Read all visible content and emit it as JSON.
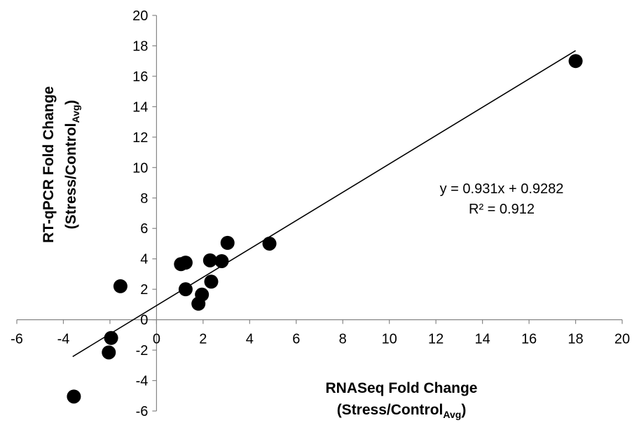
{
  "chart_data": {
    "type": "scatter",
    "title": "",
    "xlabel_line1": "RNASeq Fold Change",
    "xlabel_line2_main": "(Stress/Control",
    "xlabel_line2_sub": "Avg",
    "xlabel_line2_end": ")",
    "ylabel_line1": "RT-qPCR Fold Change",
    "ylabel_line2_main": "(Stress/Control",
    "ylabel_line2_sub": "Avg",
    "ylabel_line2_end": ")",
    "xlim": [
      -6,
      20
    ],
    "ylim": [
      -6,
      20
    ],
    "x_ticks": [
      -6,
      -4,
      -2,
      0,
      2,
      4,
      6,
      8,
      10,
      12,
      14,
      16,
      18,
      20
    ],
    "y_ticks": [
      -6,
      -4,
      -2,
      0,
      2,
      4,
      6,
      8,
      10,
      12,
      14,
      16,
      18,
      20
    ],
    "grid": false,
    "marker_color": "#000000",
    "points": [
      {
        "x": 18.0,
        "y": 17.0
      },
      {
        "x": 4.85,
        "y": 5.0
      },
      {
        "x": 3.05,
        "y": 5.05
      },
      {
        "x": 2.8,
        "y": 3.85
      },
      {
        "x": 2.3,
        "y": 3.9
      },
      {
        "x": 2.35,
        "y": 2.5
      },
      {
        "x": 1.95,
        "y": 1.65
      },
      {
        "x": 1.8,
        "y": 1.05
      },
      {
        "x": 1.25,
        "y": 2.0
      },
      {
        "x": 1.25,
        "y": 3.75
      },
      {
        "x": 1.05,
        "y": 3.65
      },
      {
        "x": -1.55,
        "y": 2.2
      },
      {
        "x": -1.95,
        "y": -1.2
      },
      {
        "x": -2.05,
        "y": -2.15
      },
      {
        "x": -3.55,
        "y": -5.05
      }
    ],
    "trendline": {
      "slope": 0.931,
      "intercept": 0.9282,
      "x_range": [
        -3.6,
        18.0
      ],
      "equation_text": "y = 0.931x + 0.9282",
      "r2_text": "R² = 0.912"
    }
  }
}
